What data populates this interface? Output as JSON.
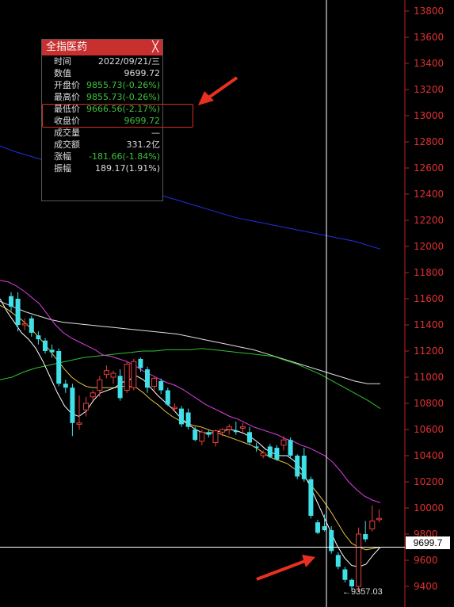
{
  "chart_data": {
    "type": "candlestick",
    "title": "",
    "y_axis": {
      "ticks": [
        13800,
        13600,
        13400,
        13200,
        13000,
        12800,
        12600,
        12400,
        12200,
        12000,
        11800,
        11600,
        11400,
        11200,
        11000,
        10800,
        10600,
        10400,
        10200,
        10000,
        9800,
        9600,
        9400
      ],
      "range": [
        9250,
        13850
      ]
    },
    "current_price_label": "9699.7",
    "current_price": 9699.7,
    "low_label": "9357.03",
    "low_value": 9357.03,
    "colors": {
      "up": "#e84040",
      "down": "#40e0e8",
      "ma5": "#ffffff",
      "ma10": "#e8c040",
      "ma20": "#e040e8",
      "ma60": "#30c030",
      "ma120": "#e0e0e0",
      "ma250": "#2030e0",
      "crosshair": "#ffffff",
      "axis_text": "#e03030"
    },
    "candles": [
      {
        "o": 11620,
        "h": 11650,
        "l": 11500,
        "c": 11540
      },
      {
        "o": 11600,
        "h": 11650,
        "l": 11350,
        "c": 11400
      },
      {
        "o": 11400,
        "h": 11450,
        "l": 11360,
        "c": 11410
      },
      {
        "o": 11450,
        "h": 11470,
        "l": 11310,
        "c": 11340
      },
      {
        "o": 11320,
        "h": 11350,
        "l": 11250,
        "c": 11290
      },
      {
        "o": 11280,
        "h": 11300,
        "l": 11180,
        "c": 11200
      },
      {
        "o": 11210,
        "h": 11250,
        "l": 11150,
        "c": 11190
      },
      {
        "o": 11200,
        "h": 11220,
        "l": 10930,
        "c": 10950
      },
      {
        "o": 10950,
        "h": 10980,
        "l": 10880,
        "c": 10920
      },
      {
        "o": 10920,
        "h": 10950,
        "l": 10550,
        "c": 10650
      },
      {
        "o": 10640,
        "h": 10860,
        "l": 10600,
        "c": 10650
      },
      {
        "o": 10750,
        "h": 10850,
        "l": 10700,
        "c": 10800
      },
      {
        "o": 10850,
        "h": 10900,
        "l": 10820,
        "c": 10880
      },
      {
        "o": 10900,
        "h": 11010,
        "l": 10850,
        "c": 10980
      },
      {
        "o": 11020,
        "h": 11090,
        "l": 10990,
        "c": 11050
      },
      {
        "o": 11000,
        "h": 11050,
        "l": 10950,
        "c": 11030
      },
      {
        "o": 11010,
        "h": 11060,
        "l": 10820,
        "c": 10840
      },
      {
        "o": 10900,
        "h": 11120,
        "l": 10880,
        "c": 11100
      },
      {
        "o": 10920,
        "h": 11140,
        "l": 10900,
        "c": 11120
      },
      {
        "o": 11140,
        "h": 11150,
        "l": 11040,
        "c": 11070
      },
      {
        "o": 11060,
        "h": 11080,
        "l": 10880,
        "c": 10920
      },
      {
        "o": 10930,
        "h": 11000,
        "l": 10900,
        "c": 10990
      },
      {
        "o": 10970,
        "h": 10990,
        "l": 10870,
        "c": 10900
      },
      {
        "o": 10900,
        "h": 10920,
        "l": 10780,
        "c": 10790
      },
      {
        "o": 10760,
        "h": 10800,
        "l": 10740,
        "c": 10770
      },
      {
        "o": 10760,
        "h": 10780,
        "l": 10620,
        "c": 10640
      },
      {
        "o": 10730,
        "h": 10760,
        "l": 10600,
        "c": 10620
      },
      {
        "o": 10600,
        "h": 10620,
        "l": 10510,
        "c": 10520
      },
      {
        "o": 10510,
        "h": 10600,
        "l": 10480,
        "c": 10580
      },
      {
        "o": 10580,
        "h": 10600,
        "l": 10540,
        "c": 10560
      },
      {
        "o": 10500,
        "h": 10600,
        "l": 10470,
        "c": 10590
      },
      {
        "o": 10580,
        "h": 10610,
        "l": 10550,
        "c": 10600
      },
      {
        "o": 10600,
        "h": 10640,
        "l": 10560,
        "c": 10620
      },
      {
        "o": 10590,
        "h": 10660,
        "l": 10560,
        "c": 10580
      },
      {
        "o": 10610,
        "h": 10650,
        "l": 10580,
        "c": 10620
      },
      {
        "o": 10580,
        "h": 10620,
        "l": 10480,
        "c": 10500
      },
      {
        "o": 10470,
        "h": 10500,
        "l": 10430,
        "c": 10460
      },
      {
        "o": 10400,
        "h": 10440,
        "l": 10380,
        "c": 10420
      },
      {
        "o": 10470,
        "h": 10490,
        "l": 10380,
        "c": 10390
      },
      {
        "o": 10460,
        "h": 10480,
        "l": 10360,
        "c": 10370
      },
      {
        "o": 10480,
        "h": 10550,
        "l": 10440,
        "c": 10520
      },
      {
        "o": 10520,
        "h": 10540,
        "l": 10380,
        "c": 10400
      },
      {
        "o": 10400,
        "h": 10410,
        "l": 10220,
        "c": 10240
      },
      {
        "o": 10400,
        "h": 10460,
        "l": 10200,
        "c": 10220
      },
      {
        "o": 10220,
        "h": 10240,
        "l": 9920,
        "c": 9940
      },
      {
        "o": 9890,
        "h": 9910,
        "l": 9800,
        "c": 9810
      },
      {
        "o": 9860,
        "h": 9950,
        "l": 9820,
        "c": 9830
      },
      {
        "o": 9830,
        "h": 9860,
        "l": 9650,
        "c": 9670
      },
      {
        "o": 9640,
        "h": 9660,
        "l": 9530,
        "c": 9550
      },
      {
        "o": 9530,
        "h": 9550,
        "l": 9430,
        "c": 9450
      },
      {
        "o": 9450,
        "h": 9460,
        "l": 9370,
        "c": 9400
      },
      {
        "o": 9400,
        "h": 9850,
        "l": 9357,
        "c": 9800
      },
      {
        "o": 9800,
        "h": 9900,
        "l": 9740,
        "c": 9760
      },
      {
        "o": 9840,
        "h": 10020,
        "l": 9820,
        "c": 9900
      },
      {
        "o": 9910,
        "h": 9990,
        "l": 9890,
        "c": 9920
      }
    ],
    "ma_lines": {
      "ma20": [
        11740,
        11730,
        11700,
        11660,
        11610,
        11560,
        11480,
        11400,
        11340,
        11300,
        11270,
        11240,
        11210,
        11170,
        11160,
        11140,
        11120,
        11090,
        11050,
        11020,
        10990,
        10960,
        10940,
        10910,
        10870,
        10830,
        10790,
        10760,
        10730,
        10700,
        10680,
        10650,
        10620,
        10600,
        10580,
        10560,
        10530,
        10510,
        10480,
        10460,
        10430,
        10400,
        10350,
        10280,
        10200,
        10140,
        10090,
        10060,
        10040
      ],
      "ma10": [
        11550,
        11520,
        11480,
        11440,
        11390,
        11330,
        11270,
        11200,
        11130,
        11060,
        11000,
        10960,
        10930,
        10920,
        10920,
        10920,
        10920,
        10930,
        10930,
        10920,
        10880,
        10830,
        10790,
        10740,
        10700,
        10670,
        10650,
        10630,
        10620,
        10600,
        10580,
        10560,
        10540,
        10520,
        10500,
        10480,
        10450,
        10410,
        10380,
        10360,
        10340,
        10300,
        10260,
        10200,
        10130,
        10060,
        9980,
        9890,
        9800,
        9730,
        9700,
        9680,
        9690,
        9700
      ],
      "ma5": [
        11600,
        11500,
        11420,
        11340,
        11290,
        11220,
        11120,
        11000,
        10880,
        10780,
        10720,
        10700,
        10740,
        10820,
        10880,
        10900,
        10920,
        10960,
        10980,
        11010,
        10980,
        10920,
        10860,
        10810,
        10760,
        10700,
        10650,
        10610,
        10580,
        10570,
        10580,
        10590,
        10600,
        10590,
        10570,
        10540,
        10500,
        10450,
        10420,
        10400,
        10400,
        10360,
        10300,
        10190,
        10070,
        9950,
        9830,
        9710,
        9620,
        9560,
        9550,
        9570,
        9640,
        9700
      ],
      "ma60": [
        10980,
        11000,
        11040,
        11070,
        11090,
        11110,
        11130,
        11150,
        11160,
        11170,
        11180,
        11190,
        11200,
        11200,
        11210,
        11210,
        11210,
        11220,
        11210,
        11200,
        11190,
        11180,
        11170,
        11160,
        11130,
        11100,
        11060,
        11020,
        10970,
        10920,
        10870,
        10820,
        10760
      ],
      "ma120": [
        11580,
        11540,
        11500,
        11470,
        11440,
        11420,
        11410,
        11400,
        11390,
        11380,
        11370,
        11360,
        11350,
        11340,
        11330,
        11310,
        11290,
        11270,
        11250,
        11230,
        11210,
        11180,
        11150,
        11120,
        11090,
        11060,
        11030,
        11000,
        10970,
        10950,
        10950
      ],
      "ma250": [
        12770,
        12730,
        12700,
        12670,
        12640,
        12610,
        12580,
        12550,
        12520,
        12490,
        12460,
        12430,
        12400,
        12370,
        12340,
        12310,
        12280,
        12250,
        12220,
        12200,
        12180,
        12160,
        12140,
        12120,
        12100,
        12080,
        12060,
        12040,
        12010,
        11980
      ]
    }
  },
  "tooltip": {
    "title": "全指医药",
    "close": "╳",
    "rows": [
      {
        "label": "时间",
        "value": "2022/09/21/三",
        "color": "white"
      },
      {
        "label": "数值",
        "value": "9699.72",
        "color": "white"
      },
      {
        "label": "开盘价",
        "value": "9855.73(-0.26%)",
        "color": "green"
      },
      {
        "label": "最高价",
        "value": "9855.73(-0.26%)",
        "color": "green"
      },
      {
        "label": "最低价",
        "value": "9666.56(-2.17%)",
        "color": "green"
      },
      {
        "label": "收盘价",
        "value": "9699.72",
        "color": "green"
      },
      {
        "label": "成交量",
        "value": "—",
        "color": "white"
      },
      {
        "label": "成交额",
        "value": "331.2亿",
        "color": "white"
      },
      {
        "label": "涨幅",
        "value": "-181.66(-1.84%)",
        "color": "green"
      },
      {
        "label": "振幅",
        "value": "189.17(1.91%)",
        "color": "white"
      }
    ]
  }
}
